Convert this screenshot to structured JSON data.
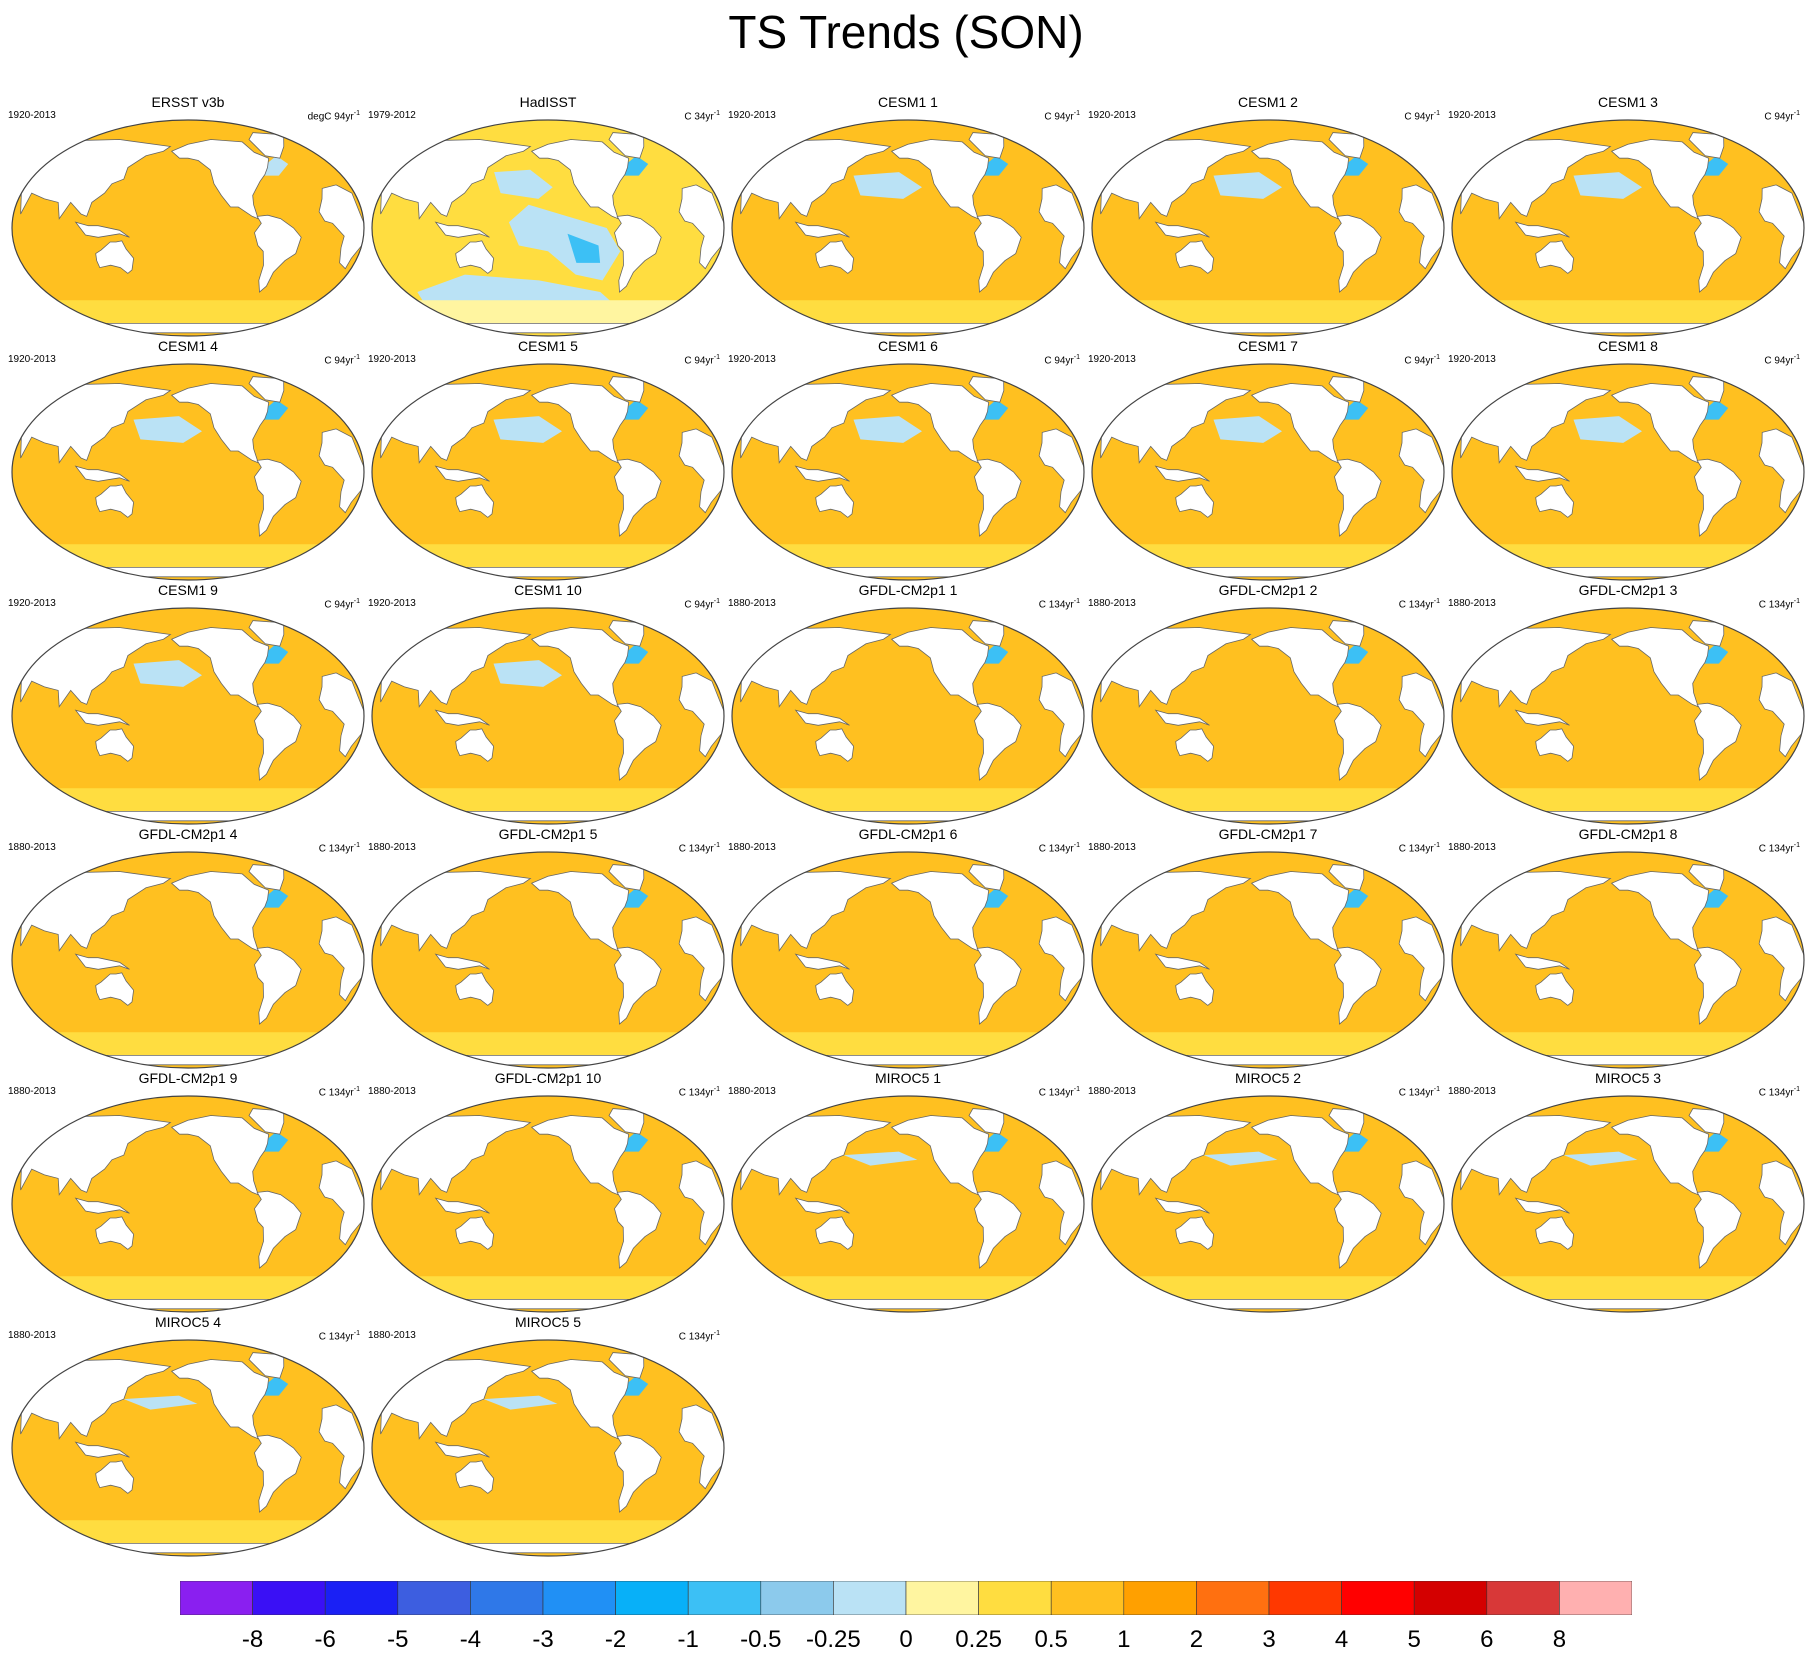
{
  "title": "TS Trends (SON)",
  "unit_exponent": "-1",
  "panels": [
    {
      "name": "ERSST v3b",
      "period": "1920-2013",
      "units": "degC 94yr",
      "style": "obs"
    },
    {
      "name": "HadISST",
      "period": "1979-2012",
      "units": "C 34yr",
      "style": "had"
    },
    {
      "name": "CESM1 1",
      "period": "1920-2013",
      "units": "C 94yr",
      "style": "cesm"
    },
    {
      "name": "CESM1 2",
      "period": "1920-2013",
      "units": "C 94yr",
      "style": "cesm"
    },
    {
      "name": "CESM1 3",
      "period": "1920-2013",
      "units": "C 94yr",
      "style": "cesm"
    },
    {
      "name": "CESM1 4",
      "period": "1920-2013",
      "units": "C 94yr",
      "style": "cesm"
    },
    {
      "name": "CESM1 5",
      "period": "1920-2013",
      "units": "C 94yr",
      "style": "cesm"
    },
    {
      "name": "CESM1 6",
      "period": "1920-2013",
      "units": "C 94yr",
      "style": "cesm"
    },
    {
      "name": "CESM1 7",
      "period": "1920-2013",
      "units": "C 94yr",
      "style": "cesm"
    },
    {
      "name": "CESM1 8",
      "period": "1920-2013",
      "units": "C 94yr",
      "style": "cesm"
    },
    {
      "name": "CESM1 9",
      "period": "1920-2013",
      "units": "C 94yr",
      "style": "cesm"
    },
    {
      "name": "CESM1 10",
      "period": "1920-2013",
      "units": "C 94yr",
      "style": "cesm"
    },
    {
      "name": "GFDL-CM2p1 1",
      "period": "1880-2013",
      "units": "C 134yr",
      "style": "gfdl"
    },
    {
      "name": "GFDL-CM2p1 2",
      "period": "1880-2013",
      "units": "C 134yr",
      "style": "gfdl"
    },
    {
      "name": "GFDL-CM2p1 3",
      "period": "1880-2013",
      "units": "C 134yr",
      "style": "gfdl"
    },
    {
      "name": "GFDL-CM2p1 4",
      "period": "1880-2013",
      "units": "C 134yr",
      "style": "gfdl"
    },
    {
      "name": "GFDL-CM2p1 5",
      "period": "1880-2013",
      "units": "C 134yr",
      "style": "gfdl"
    },
    {
      "name": "GFDL-CM2p1 6",
      "period": "1880-2013",
      "units": "C 134yr",
      "style": "gfdl"
    },
    {
      "name": "GFDL-CM2p1 7",
      "period": "1880-2013",
      "units": "C 134yr",
      "style": "gfdl"
    },
    {
      "name": "GFDL-CM2p1 8",
      "period": "1880-2013",
      "units": "C 134yr",
      "style": "gfdl"
    },
    {
      "name": "GFDL-CM2p1 9",
      "period": "1880-2013",
      "units": "C 134yr",
      "style": "gfdl"
    },
    {
      "name": "GFDL-CM2p1 10",
      "period": "1880-2013",
      "units": "C 134yr",
      "style": "gfdl"
    },
    {
      "name": "MIROC5 1",
      "period": "1880-2013",
      "units": "C 134yr",
      "style": "miroc"
    },
    {
      "name": "MIROC5 2",
      "period": "1880-2013",
      "units": "C 134yr",
      "style": "miroc"
    },
    {
      "name": "MIROC5 3",
      "period": "1880-2013",
      "units": "C 134yr",
      "style": "miroc"
    },
    {
      "name": "MIROC5 4",
      "period": "1880-2013",
      "units": "C 134yr",
      "style": "miroc"
    },
    {
      "name": "MIROC5 5",
      "period": "1880-2013",
      "units": "C 134yr",
      "style": "miroc"
    }
  ],
  "colorbar": {
    "colors": [
      "#8a1ff0",
      "#3a10f5",
      "#1a20f5",
      "#3d5ee0",
      "#2f78e8",
      "#2090f5",
      "#08b0f8",
      "#3cc0f5",
      "#8ccaec",
      "#bae2f5",
      "#fff5a0",
      "#ffdd40",
      "#ffc020",
      "#ffa000",
      "#ff7010",
      "#ff3800",
      "#ff0000",
      "#d40000",
      "#d83838",
      "#ffb0b0"
    ],
    "labels": [
      "-8",
      "-6",
      "-5",
      "-4",
      "-3",
      "-2",
      "-1",
      "-0.5",
      "-0.25",
      "0",
      "0.25",
      "0.5",
      "1",
      "2",
      "3",
      "4",
      "5",
      "6",
      "8"
    ]
  },
  "land_color": "#ffffff",
  "coast_color": "#666666"
}
